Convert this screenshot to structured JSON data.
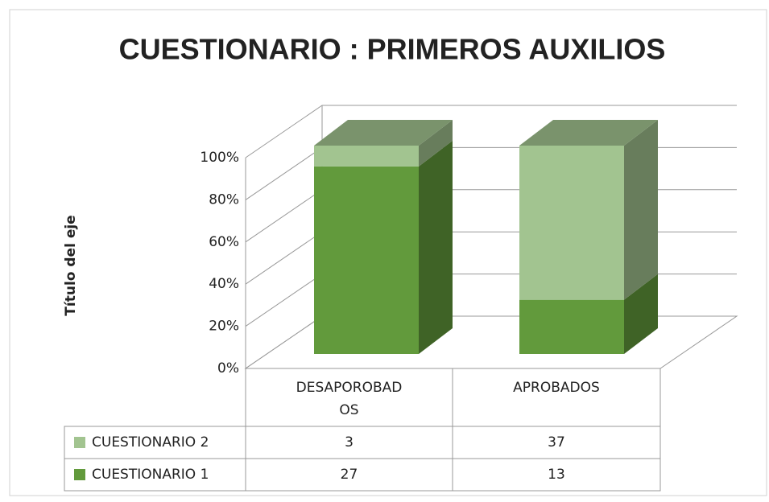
{
  "chart_data": {
    "type": "bar3d",
    "stacking": "percent",
    "title": "CUESTIONARIO : PRIMEROS AUXILIOS",
    "y_label": "Título del eje",
    "categories": [
      "DESAPOROBADOS",
      "APROBADOS"
    ],
    "series": [
      {
        "name": "CUESTIONARIO 1",
        "color": "#629a3c",
        "values": [
          27,
          13
        ]
      },
      {
        "name": "CUESTIONARIO 2",
        "color": "#a2c490",
        "values": [
          3,
          37
        ]
      }
    ],
    "ylim": [
      0,
      100
    ],
    "yticks": [
      {
        "value": 0,
        "label": "0%"
      },
      {
        "value": 20,
        "label": "20%"
      },
      {
        "value": 40,
        "label": "40%"
      },
      {
        "value": 60,
        "label": "60%"
      },
      {
        "value": 80,
        "label": "80%"
      },
      {
        "value": 100,
        "label": "100%"
      }
    ],
    "grid": true
  }
}
